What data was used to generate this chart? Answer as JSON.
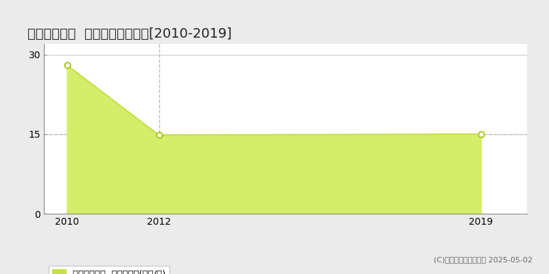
{
  "title": "島田市中溝町  収益物件価格推移[2010-2019]",
  "x_data": [
    2010,
    2012,
    2019
  ],
  "y_data": [
    28.0,
    14.8,
    15.0
  ],
  "xlim": [
    2009.5,
    2020.0
  ],
  "ylim": [
    0,
    32
  ],
  "yticks": [
    0,
    15,
    30
  ],
  "xticks": [
    2010,
    2012,
    2019
  ],
  "line_color": "#c8e04a",
  "fill_color": "#d4ed6a",
  "fill_alpha": 1.0,
  "marker_color": "#ffffff",
  "marker_edge_color": "#aac820",
  "bg_color": "#ebebeb",
  "plot_bg_color": "#ffffff",
  "grid_color": "#bbbbbb",
  "vline_x": 2012,
  "hline_y": 15,
  "legend_label": "収益物件価格  平均坪単価(万円/坪)",
  "legend_color": "#c8e04a",
  "copyright_text": "(C)土地価格ドットコム 2025-05-02",
  "title_fontsize": 14,
  "tick_fontsize": 10,
  "legend_fontsize": 9.5
}
